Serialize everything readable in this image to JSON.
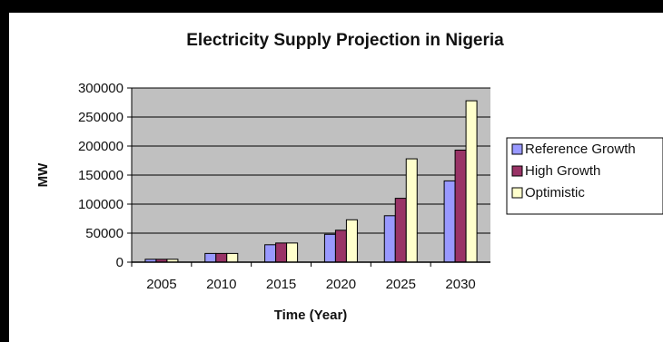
{
  "chart_data": {
    "type": "bar",
    "title": "Electricity Supply Projection in Nigeria",
    "xlabel": "Time (Year)",
    "ylabel": "MW",
    "categories": [
      "2005",
      "2010",
      "2015",
      "2020",
      "2025",
      "2030"
    ],
    "ylim": [
      0,
      300000
    ],
    "yticks": [
      "0",
      "50000",
      "100000",
      "150000",
      "200000",
      "250000",
      "300000"
    ],
    "grid": true,
    "legend_position": "right",
    "series": [
      {
        "name": "Reference Growth",
        "color": "#9999ff",
        "values": [
          5000,
          15000,
          30000,
          48000,
          80000,
          140000
        ]
      },
      {
        "name": "High Growth",
        "color": "#993366",
        "values": [
          5000,
          15000,
          33000,
          55000,
          110000,
          193000
        ]
      },
      {
        "name": "Optimistic",
        "color": "#ffffcc",
        "values": [
          5000,
          15000,
          33000,
          73000,
          178000,
          278000
        ]
      }
    ],
    "plot_background": "#c0c0c0"
  }
}
